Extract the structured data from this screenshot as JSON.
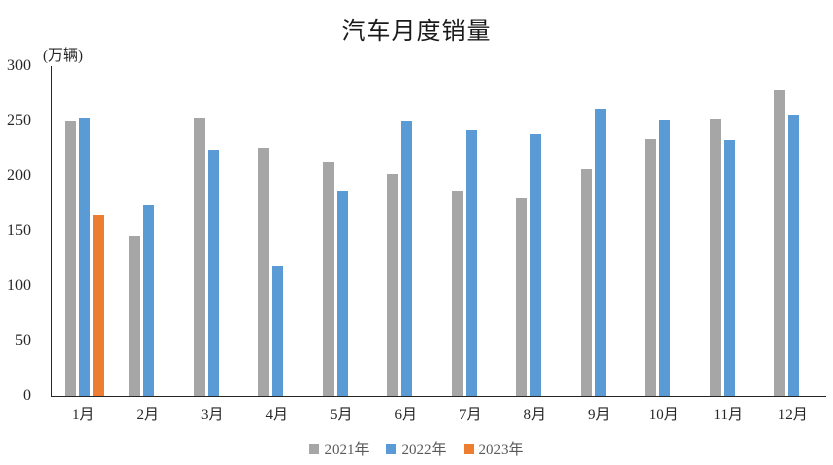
{
  "title": "汽车月度销量",
  "unit_label": "(万辆)",
  "colors": {
    "series_2021": "#A6A6A6",
    "series_2022": "#5B9BD5",
    "series_2023": "#ED7D31",
    "axis": "#262626",
    "tick_text": "#262626",
    "legend_text": "#595959",
    "background": "#FFFFFF"
  },
  "chart_data": {
    "type": "bar",
    "title": "汽车月度销量",
    "ylabel": "(万辆)",
    "xlabel": "",
    "categories": [
      "1月",
      "2月",
      "3月",
      "4月",
      "5月",
      "6月",
      "7月",
      "8月",
      "9月",
      "10月",
      "11月",
      "12月"
    ],
    "series": [
      {
        "name": "2021年",
        "color": "#A6A6A6",
        "values": [
          250.3,
          145.5,
          252.6,
          225.2,
          212.8,
          201.5,
          186.4,
          179.9,
          206.7,
          233.3,
          252.2,
          278.6
        ]
      },
      {
        "name": "2022年",
        "color": "#5B9BD5",
        "values": [
          253.1,
          173.7,
          223.4,
          118.1,
          186.2,
          250.2,
          242.0,
          238.3,
          261.0,
          250.5,
          232.8,
          255.6
        ]
      },
      {
        "name": "2023年",
        "color": "#ED7D31",
        "values": [
          164.9,
          null,
          null,
          null,
          null,
          null,
          null,
          null,
          null,
          null,
          null,
          null
        ]
      }
    ],
    "ylim": [
      0,
      300
    ],
    "yticks": [
      0,
      50,
      100,
      150,
      200,
      250,
      300
    ],
    "grid": false,
    "legend_position": "bottom"
  }
}
